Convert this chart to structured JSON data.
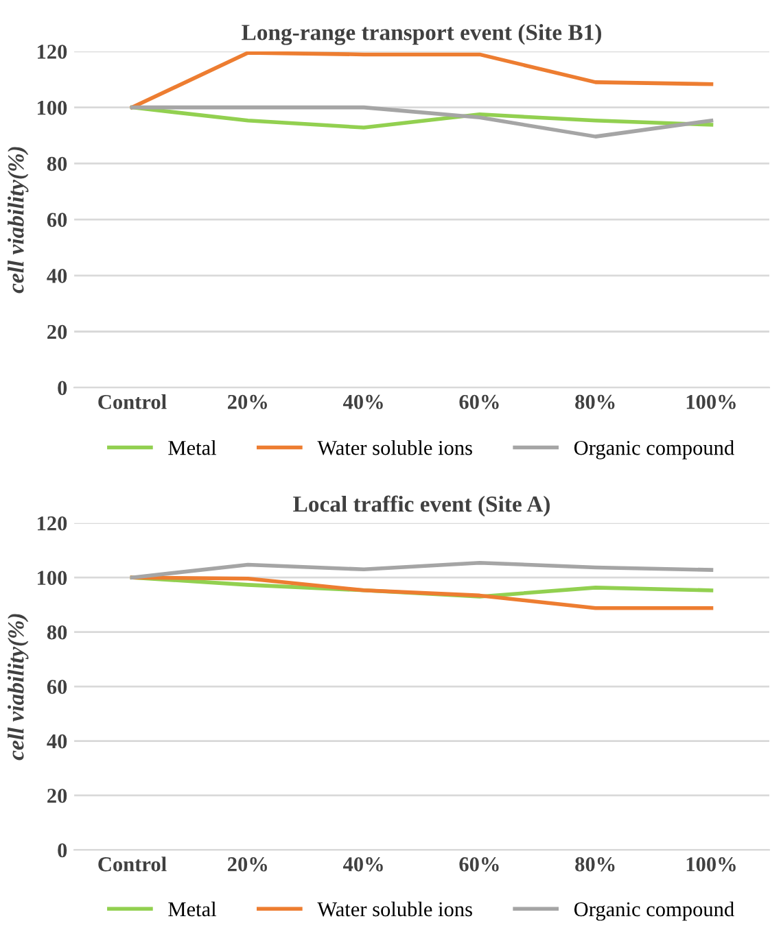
{
  "chart_data": [
    {
      "type": "line",
      "title": "Long-range transport event (Site B1)",
      "ylabel": "cell viability(%)",
      "categories": [
        "Control",
        "20%",
        "40%",
        "60%",
        "80%",
        "100%"
      ],
      "ylim": [
        0,
        120
      ],
      "yticks": [
        0,
        20,
        40,
        60,
        80,
        100,
        120
      ],
      "grid": "y",
      "legend": "bottom",
      "series": [
        {
          "name": "Metal",
          "color": "#92d050",
          "values": [
            100,
            95.3,
            92.8,
            97.5,
            95.3,
            93.8
          ]
        },
        {
          "name": "Water soluble ions",
          "color": "#ed7d31",
          "values": [
            100,
            119.5,
            118.9,
            118.9,
            109,
            108.3
          ]
        },
        {
          "name": "Organic compound",
          "color": "#a5a5a5",
          "values": [
            100,
            100,
            100,
            96.4,
            89.6,
            95.3
          ]
        }
      ]
    },
    {
      "type": "line",
      "title": "Local traffic event (Site A)",
      "ylabel": "cell viability(%)",
      "categories": [
        "Control",
        "20%",
        "40%",
        "60%",
        "80%",
        "100%"
      ],
      "ylim": [
        0,
        120
      ],
      "yticks": [
        0,
        20,
        40,
        60,
        80,
        100,
        120
      ],
      "grid": "y",
      "legend": "bottom",
      "series": [
        {
          "name": "Metal",
          "color": "#92d050",
          "values": [
            100,
            97.3,
            95.3,
            93,
            96.3,
            95.3
          ]
        },
        {
          "name": "Water soluble ions",
          "color": "#ed7d31",
          "values": [
            100,
            99.6,
            95.3,
            93.4,
            88.8,
            88.8
          ]
        },
        {
          "name": "Organic compound",
          "color": "#a5a5a5",
          "values": [
            100,
            104.7,
            103,
            105.4,
            103.7,
            102.8
          ]
        }
      ]
    }
  ]
}
